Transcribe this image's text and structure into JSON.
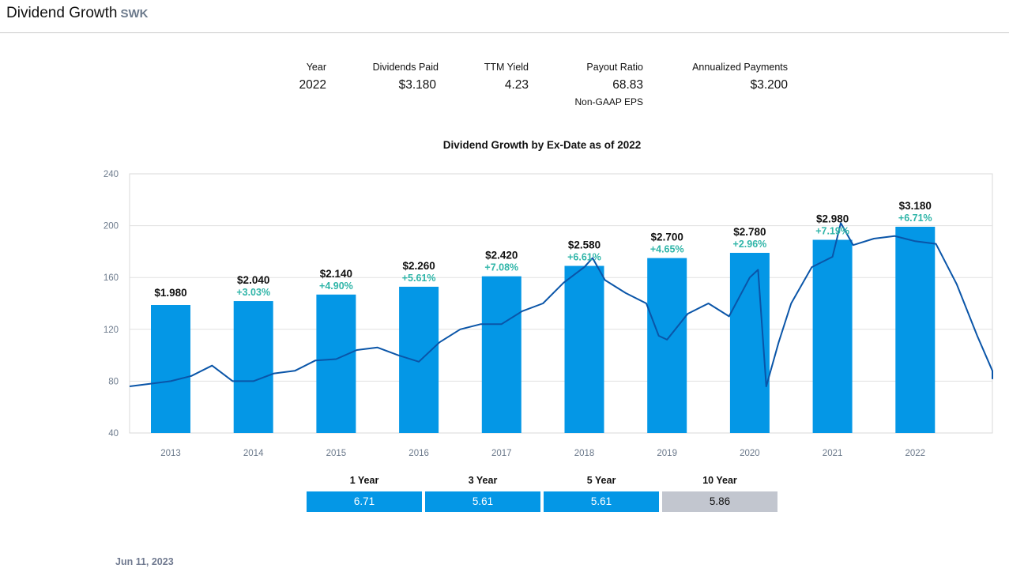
{
  "header": {
    "title": "Dividend Growth",
    "ticker": "SWK"
  },
  "stats": {
    "year_label": "Year",
    "year_value": "2022",
    "dividends_label": "Dividends Paid",
    "dividends_value": "$3.180",
    "yield_label": "TTM Yield",
    "yield_value": "4.23",
    "payout_label": "Payout Ratio",
    "payout_value": "68.83",
    "payout_sub": "Non-GAAP EPS",
    "annualized_label": "Annualized Payments",
    "annualized_value": "$3.200"
  },
  "chart_data": {
    "type": "bar",
    "title": "Dividend Growth by Ex-Date as of 2022",
    "categories": [
      "2013",
      "2014",
      "2015",
      "2016",
      "2017",
      "2018",
      "2019",
      "2020",
      "2021",
      "2022"
    ],
    "series": [
      {
        "values": [
          1.98,
          2.04,
          2.14,
          2.26,
          2.42,
          2.58,
          2.7,
          2.78,
          2.98,
          3.18
        ],
        "labels": [
          "$1.980",
          "$2.040",
          "$2.140",
          "$2.260",
          "$2.420",
          "$2.580",
          "$2.700",
          "$2.780",
          "$2.980",
          "$3.180"
        ],
        "growth": [
          "",
          "+3.03%",
          "+4.90%",
          "+5.61%",
          "+7.08%",
          "+6.61%",
          "+4.65%",
          "+2.96%",
          "+7.19%",
          "+6.71%"
        ],
        "color": "#0497e6"
      },
      {
        "type": "line",
        "color": "#0a55a8",
        "x": [
          2012.5,
          2012.75,
          2013.0,
          2013.25,
          2013.5,
          2013.75,
          2014.0,
          2014.25,
          2014.5,
          2014.75,
          2015.0,
          2015.25,
          2015.5,
          2015.75,
          2016.0,
          2016.25,
          2016.5,
          2016.75,
          2017.0,
          2017.25,
          2017.5,
          2017.75,
          2018.0,
          2018.1,
          2018.25,
          2018.5,
          2018.75,
          2018.9,
          2019.0,
          2019.25,
          2019.5,
          2019.75,
          2020.0,
          2020.1,
          2020.2,
          2020.35,
          2020.5,
          2020.75,
          2021.0,
          2021.1,
          2021.25,
          2021.5,
          2021.75,
          2022.0,
          2022.25,
          2022.5,
          2022.75,
          2023.0,
          2023.25,
          2023.45
        ],
        "y": [
          76,
          78,
          80,
          84,
          92,
          80,
          80,
          86,
          88,
          96,
          97,
          104,
          106,
          100,
          95,
          110,
          120,
          124,
          124,
          134,
          140,
          156,
          168,
          175,
          158,
          148,
          140,
          115,
          112,
          132,
          140,
          130,
          160,
          166,
          76,
          110,
          140,
          168,
          176,
          202,
          185,
          190,
          192,
          188,
          186,
          155,
          115,
          88,
          82,
          84
        ],
        "ylim": [
          40,
          240
        ]
      }
    ]
  },
  "axis": {
    "y_ticks": [
      "240",
      "200",
      "160",
      "120",
      "80",
      "40"
    ]
  },
  "periods": [
    {
      "label": "1 Year",
      "value": "6.71",
      "grey": false
    },
    {
      "label": "3 Year",
      "value": "5.61",
      "grey": false
    },
    {
      "label": "5 Year",
      "value": "5.61",
      "grey": false
    },
    {
      "label": "10 Year",
      "value": "5.86",
      "grey": true
    }
  ],
  "footer": {
    "date": "Jun 11, 2023"
  }
}
